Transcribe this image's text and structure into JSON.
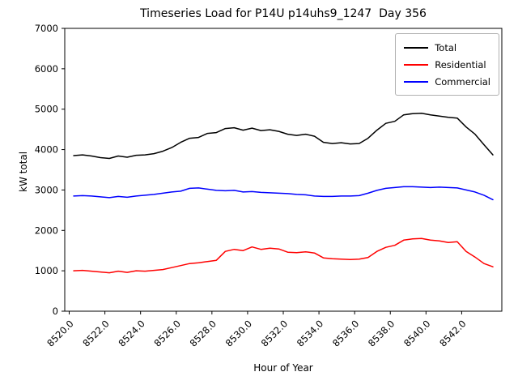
{
  "chart_data": {
    "type": "line",
    "title": "Timeseries Load for P14U p14uhs9_1247  Day 356",
    "xlabel": "Hour of Year",
    "ylabel": "kW total",
    "xlim": [
      8519.75,
      8544.25
    ],
    "ylim": [
      0,
      7000
    ],
    "grid": false,
    "legend_position": "upper right",
    "xticks": [
      8520,
      8522,
      8524,
      8526,
      8528,
      8530,
      8532,
      8534,
      8536,
      8538,
      8540,
      8542
    ],
    "xtick_labels": [
      "8520.0",
      "8522.0",
      "8524.0",
      "8526.0",
      "8528.0",
      "8530.0",
      "8532.0",
      "8534.0",
      "8536.0",
      "8538.0",
      "8540.0",
      "8542.0"
    ],
    "yticks": [
      0,
      1000,
      2000,
      3000,
      4000,
      5000,
      6000,
      7000
    ],
    "ytick_labels": [
      "0",
      "1000",
      "2000",
      "3000",
      "4000",
      "5000",
      "6000",
      "7000"
    ],
    "x": [
      8520.25,
      8520.75,
      8521.25,
      8521.75,
      8522.25,
      8522.75,
      8523.25,
      8523.75,
      8524.25,
      8524.75,
      8525.25,
      8525.75,
      8526.25,
      8526.75,
      8527.25,
      8527.75,
      8528.25,
      8528.75,
      8529.25,
      8529.75,
      8530.25,
      8530.75,
      8531.25,
      8531.75,
      8532.25,
      8532.75,
      8533.25,
      8533.75,
      8534.25,
      8534.75,
      8535.25,
      8535.75,
      8536.25,
      8536.75,
      8537.25,
      8537.75,
      8538.25,
      8538.75,
      8539.25,
      8539.75,
      8540.25,
      8540.75,
      8541.25,
      8541.75,
      8542.25,
      8542.75,
      8543.25,
      8543.75
    ],
    "series": [
      {
        "name": "Total",
        "color": "#000000",
        "values": [
          3850,
          3870,
          3840,
          3800,
          3780,
          3840,
          3810,
          3860,
          3870,
          3900,
          3960,
          4050,
          4180,
          4280,
          4300,
          4400,
          4420,
          4520,
          4540,
          4480,
          4530,
          4470,
          4490,
          4450,
          4380,
          4350,
          4380,
          4330,
          4180,
          4150,
          4170,
          4140,
          4150,
          4280,
          4480,
          4650,
          4700,
          4860,
          4890,
          4900,
          4860,
          4830,
          4800,
          4780,
          4560,
          4380,
          4120,
          3870
        ]
      },
      {
        "name": "Residential",
        "color": "#ff0000",
        "values": [
          1000,
          1010,
          990,
          970,
          950,
          990,
          960,
          1000,
          990,
          1010,
          1030,
          1080,
          1130,
          1180,
          1200,
          1230,
          1260,
          1480,
          1530,
          1500,
          1590,
          1530,
          1560,
          1540,
          1460,
          1450,
          1470,
          1440,
          1320,
          1300,
          1290,
          1280,
          1290,
          1330,
          1480,
          1580,
          1630,
          1760,
          1790,
          1800,
          1760,
          1740,
          1700,
          1720,
          1480,
          1340,
          1180,
          1100
        ]
      },
      {
        "name": "Commercial",
        "color": "#0000ff",
        "values": [
          2850,
          2860,
          2850,
          2830,
          2810,
          2840,
          2820,
          2850,
          2870,
          2890,
          2920,
          2950,
          2970,
          3040,
          3050,
          3020,
          2990,
          2980,
          2990,
          2950,
          2960,
          2940,
          2930,
          2920,
          2910,
          2890,
          2880,
          2850,
          2840,
          2840,
          2850,
          2850,
          2860,
          2920,
          2990,
          3040,
          3060,
          3080,
          3080,
          3070,
          3060,
          3070,
          3060,
          3050,
          3000,
          2950,
          2870,
          2760
        ]
      }
    ]
  }
}
